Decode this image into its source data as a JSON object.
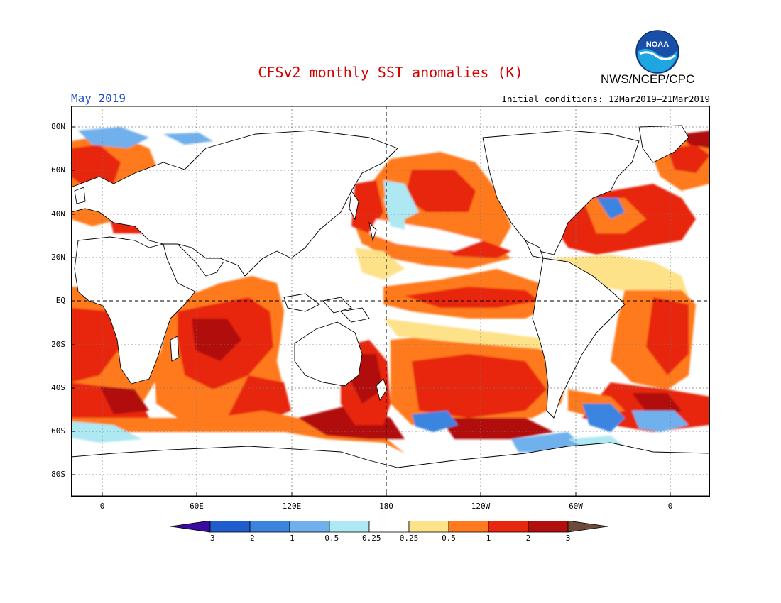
{
  "header": {
    "title": "CFSv2 monthly SST anomalies (K)",
    "month": "May 2019",
    "initial_conditions": "Initial conditions: 12Mar2019–21Mar2019",
    "agency": "NWS/NCEP/CPC",
    "logo_text": "NOAA"
  },
  "map": {
    "lat_labels": [
      "80N",
      "60N",
      "40N",
      "20N",
      "EQ",
      "20S",
      "40S",
      "60S",
      "80S"
    ],
    "lon_labels": [
      "0",
      "60E",
      "120E",
      "180",
      "120W",
      "60W",
      "0"
    ]
  },
  "colorbar": {
    "labels": [
      "−3",
      "−2",
      "−1",
      "−0.5",
      "−0.25",
      "0.25",
      "0.5",
      "1",
      "2",
      "3"
    ],
    "colors": {
      "lt_m3": "#3b0aa0",
      "m3_m2": "#1f5ccc",
      "m2_m1": "#3a84e0",
      "m1_m05": "#6fb0ec",
      "m05_m025": "#aee8f2",
      "m025_025": "#ffffff",
      "p025_05": "#fde28a",
      "p05_1": "#ff7a1e",
      "p1_2": "#e8270e",
      "p2_3": "#b20e0e",
      "gt_3": "#6e4a3a"
    }
  }
}
